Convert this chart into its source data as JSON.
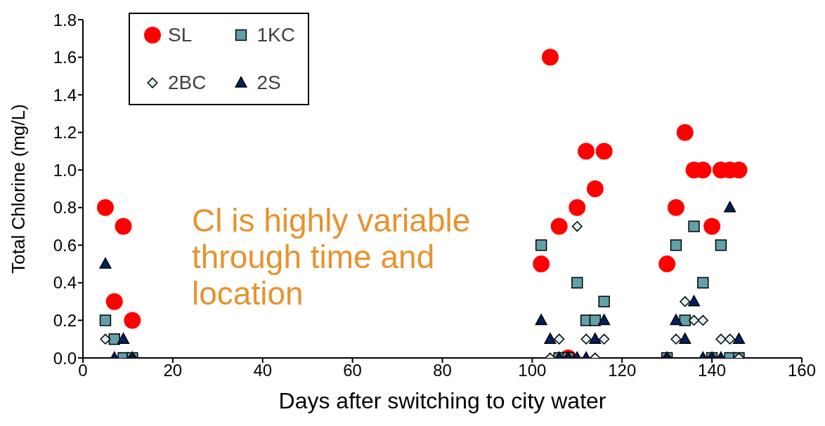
{
  "chart_data": {
    "type": "scatter",
    "xlabel": "Days after switching to city water",
    "ylabel": "Total Chlorine (mg/L)",
    "annotations": [
      "Cl is highly variable through time and location"
    ],
    "xlim": [
      0,
      160
    ],
    "xticks": [
      0,
      20,
      40,
      60,
      80,
      100,
      120,
      140,
      160
    ],
    "ylim": [
      0,
      1.8
    ],
    "yticks": [
      {
        "value": 0,
        "label": "0.0"
      },
      {
        "value": 0.2,
        "label": "0.2"
      },
      {
        "value": 0.4,
        "label": "0.4"
      },
      {
        "value": 0.6,
        "label": "0.6"
      },
      {
        "value": 0.8,
        "label": "0.8"
      },
      {
        "value": 1,
        "label": "1.0"
      },
      {
        "value": 1.2,
        "label": "1.2"
      },
      {
        "value": 1.4,
        "label": "1.4"
      },
      {
        "value": 1.6,
        "label": "1.6"
      },
      {
        "value": 1.8,
        "label": "1.8"
      }
    ],
    "grid": false,
    "legend": "top left",
    "series": [
      {
        "name": "SL",
        "color": "#ff0000",
        "marker": "circle",
        "x": [
          5,
          7,
          9,
          11,
          102,
          104,
          106,
          108,
          110,
          112,
          114,
          116,
          130,
          132,
          134,
          136,
          138,
          140,
          142,
          144,
          146
        ],
        "values": [
          0.8,
          0.3,
          0.7,
          0.2,
          0.5,
          1.6,
          0.7,
          0,
          0.8,
          1.1,
          0.9,
          1.1,
          0.5,
          0.8,
          1.2,
          1,
          1,
          0.7,
          1,
          1,
          1
        ]
      },
      {
        "name": "1KC",
        "color": "#62a0aa",
        "marker": "square",
        "x": [
          5,
          7,
          9,
          11,
          102,
          104,
          106,
          108,
          110,
          112,
          114,
          116,
          130,
          132,
          134,
          136,
          138,
          140,
          142,
          144,
          146
        ],
        "values": [
          0.2,
          0.1,
          0,
          0,
          0.6,
          null,
          0,
          0,
          0.4,
          0.2,
          0.2,
          0.3,
          0,
          0.6,
          0.2,
          0.7,
          0.4,
          0,
          0.6,
          0,
          0
        ]
      },
      {
        "name": "2BC",
        "color": "#ddeeee",
        "marker": "diamond",
        "x": [
          5,
          7,
          9,
          11,
          102,
          104,
          106,
          108,
          110,
          112,
          114,
          116,
          130,
          132,
          134,
          136,
          138,
          140,
          142,
          144,
          146
        ],
        "values": [
          0.1,
          null,
          null,
          0,
          null,
          0,
          0.1,
          0,
          0.7,
          0.1,
          0,
          0.1,
          0,
          0.1,
          0.3,
          0.2,
          0.2,
          0,
          0.1,
          0.1,
          0
        ]
      },
      {
        "name": "2S",
        "color": "#002060",
        "marker": "triangle",
        "x": [
          5,
          7,
          9,
          11,
          102,
          104,
          106,
          108,
          110,
          112,
          114,
          116,
          130,
          132,
          134,
          136,
          138,
          140,
          142,
          144,
          146
        ],
        "values": [
          0.5,
          0,
          0.1,
          0,
          0.2,
          0.1,
          0,
          0,
          0,
          0,
          0.1,
          0.2,
          0,
          0.2,
          0.1,
          0.3,
          0,
          0,
          0,
          0.8,
          0.1
        ]
      }
    ]
  }
}
